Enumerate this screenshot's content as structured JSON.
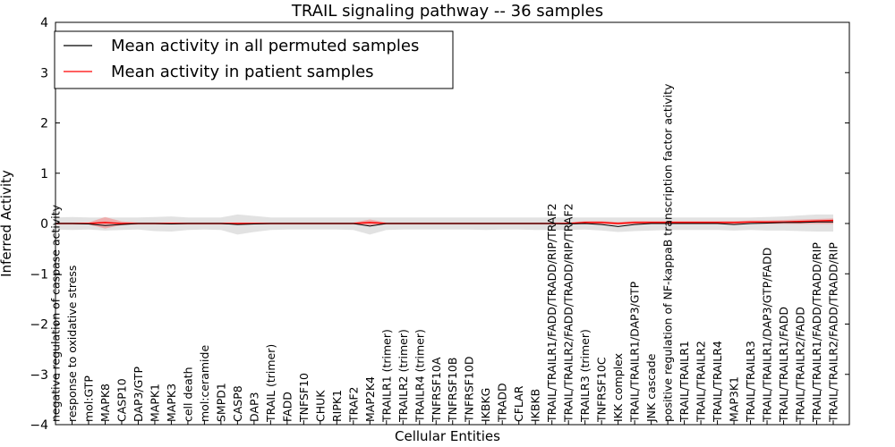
{
  "chart_data": {
    "type": "line",
    "title": "TRAIL signaling pathway -- 36 samples",
    "xlabel": "Cellular Entities",
    "ylabel": "Inferred Activity",
    "ylim": [
      -4,
      4
    ],
    "yticks": [
      -4,
      -3,
      -2,
      -1,
      0,
      1,
      2,
      3,
      4
    ],
    "ytick_labels": [
      "−4",
      "−3",
      "−2",
      "−1",
      "0",
      "1",
      "2",
      "3",
      "4"
    ],
    "legend_position": "top-left",
    "categories": [
      "negative regulation of caspase activity",
      "response to oxidative stress",
      "mol:GTP",
      "MAPK8",
      "CASP10",
      "DAP3/GTP",
      "MAPK1",
      "MAPK3",
      "cell death",
      "mol:ceramide",
      "SMPD1",
      "CASP8",
      "DAP3",
      "TRAIL (trimer)",
      "FADD",
      "TNFSF10",
      "CHUK",
      "RIPK1",
      "TRAF2",
      "MAP2K4",
      "TRAILR1 (trimer)",
      "TRAILR2 (trimer)",
      "TRAILR4 (trimer)",
      "TNFRSF10A",
      "TNFRSF10B",
      "TNFRSF10D",
      "IKBKG",
      "TRADD",
      "CFLAR",
      "IKBKB",
      "TRAIL/TRAILR1/FADD/TRADD/RIP/TRAF2",
      "TRAIL/TRAILR2/FADD/TRADD/RIP/TRAF2",
      "TRAILR3 (trimer)",
      "TNFRSF10C",
      "IKK complex",
      "TRAIL/TRAILR1/DAP3/GTP",
      "JNK cascade",
      "positive regulation of NF-kappaB transcription factor activity",
      "TRAIL/TRAILR1",
      "TRAIL/TRAILR2",
      "TRAIL/TRAILR4",
      "MAP3K1",
      "TRAIL/TRAILR3",
      "TRAIL/TRAILR1/DAP3/GTP/FADD",
      "TRAIL/TRAILR1/FADD",
      "TRAIL/TRAILR2/FADD",
      "TRAIL/TRAILR1/FADD/TRADD/RIP",
      "TRAIL/TRAILR2/FADD/TRADD/RIP"
    ],
    "series": [
      {
        "name": "Mean activity in all permuted samples",
        "color": "#000000",
        "values": [
          0,
          0,
          -0.01,
          -0.04,
          -0.02,
          0,
          0,
          -0.01,
          0,
          0,
          0,
          -0.02,
          -0.01,
          0,
          0,
          0,
          0,
          0,
          0,
          -0.05,
          0,
          0,
          0,
          0,
          0,
          0,
          0,
          0,
          0,
          0,
          0,
          -0.01,
          0,
          -0.02,
          -0.06,
          -0.02,
          0,
          0,
          0,
          0,
          0,
          -0.02,
          0,
          0.01,
          0.02,
          0.02,
          0.03,
          0.03
        ],
        "band_low": [
          -0.12,
          -0.13,
          -0.12,
          -0.14,
          -0.13,
          -0.12,
          -0.15,
          -0.16,
          -0.13,
          -0.12,
          -0.13,
          -0.22,
          -0.17,
          -0.13,
          -0.12,
          -0.12,
          -0.12,
          -0.12,
          -0.13,
          -0.22,
          -0.13,
          -0.12,
          -0.12,
          -0.12,
          -0.12,
          -0.12,
          -0.13,
          -0.12,
          -0.12,
          -0.13,
          -0.13,
          -0.13,
          -0.12,
          -0.14,
          -0.17,
          -0.15,
          -0.14,
          -0.13,
          -0.13,
          -0.13,
          -0.13,
          -0.14,
          -0.13,
          -0.14,
          -0.14,
          -0.15,
          -0.16,
          -0.16
        ],
        "band_high": [
          0.12,
          0.13,
          0.12,
          0.12,
          0.12,
          0.12,
          0.13,
          0.14,
          0.12,
          0.12,
          0.12,
          0.18,
          0.15,
          0.12,
          0.12,
          0.12,
          0.12,
          0.12,
          0.12,
          0.12,
          0.12,
          0.12,
          0.12,
          0.12,
          0.12,
          0.12,
          0.12,
          0.12,
          0.12,
          0.12,
          0.12,
          0.12,
          0.12,
          0.12,
          0.12,
          0.12,
          0.12,
          0.12,
          0.12,
          0.12,
          0.12,
          0.12,
          0.12,
          0.13,
          0.14,
          0.16,
          0.18,
          0.18
        ]
      },
      {
        "name": "Mean activity in patient samples",
        "color": "#ff0000",
        "values": [
          0,
          0,
          0,
          0.02,
          0,
          0,
          0,
          0,
          0,
          0,
          0,
          0,
          0,
          0,
          0,
          0,
          0,
          0,
          0,
          0.02,
          0,
          0,
          0,
          0,
          0,
          0,
          0,
          0,
          0,
          0,
          0,
          0,
          0.02,
          0.02,
          0,
          0.02,
          0.02,
          0.02,
          0.02,
          0.02,
          0.02,
          0.02,
          0.03,
          0.03,
          0.03,
          0.04,
          0.05,
          0.06
        ],
        "band_low": [
          -0.02,
          -0.02,
          -0.02,
          -0.1,
          -0.03,
          -0.02,
          -0.02,
          -0.02,
          -0.02,
          -0.02,
          -0.02,
          -0.02,
          -0.02,
          -0.02,
          -0.02,
          -0.02,
          -0.02,
          -0.02,
          -0.02,
          -0.04,
          -0.02,
          -0.02,
          -0.02,
          -0.02,
          -0.02,
          -0.02,
          -0.02,
          -0.02,
          -0.02,
          -0.02,
          -0.02,
          -0.02,
          -0.01,
          -0.01,
          -0.02,
          -0.01,
          -0.01,
          -0.01,
          -0.01,
          -0.01,
          -0.01,
          -0.01,
          -0.01,
          -0.01,
          -0.01,
          -0.01,
          -0.01,
          -0.01
        ],
        "band_high": [
          0.02,
          0.02,
          0.02,
          0.13,
          0.04,
          0.02,
          0.02,
          0.02,
          0.02,
          0.02,
          0.02,
          0.02,
          0.02,
          0.02,
          0.02,
          0.02,
          0.02,
          0.02,
          0.02,
          0.08,
          0.02,
          0.02,
          0.02,
          0.02,
          0.02,
          0.02,
          0.02,
          0.02,
          0.02,
          0.02,
          0.02,
          0.02,
          0.05,
          0.05,
          0.03,
          0.05,
          0.05,
          0.05,
          0.05,
          0.05,
          0.05,
          0.05,
          0.06,
          0.06,
          0.07,
          0.08,
          0.09,
          0.1
        ]
      }
    ]
  }
}
